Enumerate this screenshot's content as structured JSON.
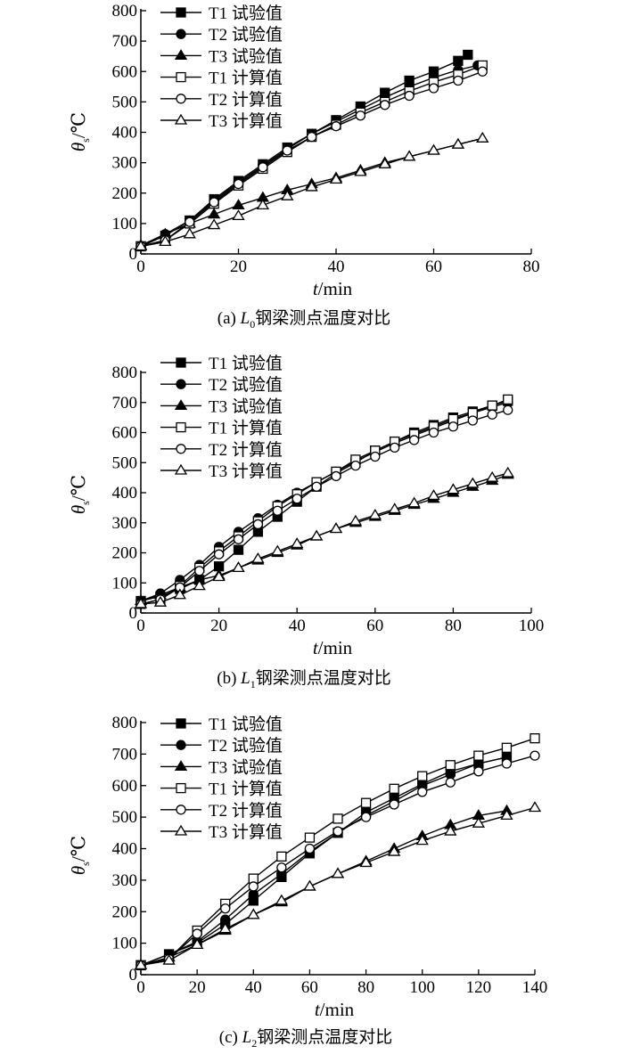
{
  "chart_data": [
    {
      "type": "line",
      "caption_prefix": "(a) ",
      "caption_italic": "L",
      "caption_sub": "0",
      "caption_suffix": "钢梁测点温度对比",
      "xlabel_italic": "t",
      "xlabel_unit": "/min",
      "ylabel_italic": "θ",
      "ylabel_sub": "s",
      "ylabel_unit": "/℃",
      "xlim": [
        0,
        80
      ],
      "ylim": [
        0,
        800
      ],
      "xticks": [
        0,
        20,
        40,
        60,
        80
      ],
      "yticks": [
        0,
        100,
        200,
        300,
        400,
        500,
        600,
        700,
        800
      ],
      "series": [
        {
          "name": "T1 试验值",
          "marker": "square-filled",
          "x": [
            0,
            5,
            10,
            15,
            20,
            25,
            30,
            35,
            40,
            45,
            50,
            55,
            60,
            65,
            67
          ],
          "y": [
            25,
            60,
            110,
            180,
            240,
            295,
            350,
            395,
            440,
            485,
            530,
            570,
            600,
            635,
            655
          ]
        },
        {
          "name": "T2 试验值",
          "marker": "circle-filled",
          "x": [
            0,
            5,
            10,
            15,
            20,
            25,
            30,
            35,
            40,
            45,
            50,
            55,
            60,
            65,
            69
          ],
          "y": [
            25,
            65,
            110,
            175,
            235,
            290,
            345,
            395,
            435,
            475,
            515,
            550,
            580,
            605,
            620
          ]
        },
        {
          "name": "T3 试验值",
          "marker": "triangle-filled",
          "x": [
            0,
            5,
            10,
            15,
            20,
            25,
            30,
            35,
            40,
            45,
            50,
            55,
            60,
            65,
            70
          ],
          "y": [
            28,
            65,
            100,
            130,
            160,
            185,
            210,
            230,
            250,
            275,
            300,
            320,
            340,
            360,
            380
          ]
        },
        {
          "name": "T1 计算值",
          "marker": "square-open",
          "x": [
            0,
            5,
            10,
            15,
            20,
            25,
            30,
            35,
            40,
            45,
            50,
            55,
            60,
            65,
            70
          ],
          "y": [
            25,
            45,
            100,
            165,
            225,
            280,
            335,
            385,
            425,
            465,
            500,
            535,
            565,
            590,
            620
          ]
        },
        {
          "name": "T2 计算值",
          "marker": "circle-open",
          "x": [
            0,
            5,
            10,
            15,
            20,
            25,
            30,
            35,
            40,
            45,
            50,
            55,
            60,
            65,
            70
          ],
          "y": [
            25,
            45,
            105,
            170,
            230,
            285,
            340,
            385,
            420,
            455,
            490,
            520,
            545,
            570,
            600
          ]
        },
        {
          "name": "T3 计算值",
          "marker": "triangle-open",
          "x": [
            0,
            5,
            10,
            15,
            20,
            25,
            30,
            35,
            40,
            45,
            50,
            55,
            60,
            65,
            70
          ],
          "y": [
            25,
            40,
            65,
            95,
            125,
            160,
            190,
            220,
            245,
            270,
            295,
            320,
            340,
            360,
            380
          ]
        }
      ]
    },
    {
      "type": "line",
      "caption_prefix": "(b) ",
      "caption_italic": "L",
      "caption_sub": "1",
      "caption_suffix": "钢梁测点温度对比",
      "xlabel_italic": "t",
      "xlabel_unit": "/min",
      "ylabel_italic": "θ",
      "ylabel_sub": "s",
      "ylabel_unit": "/℃",
      "xlim": [
        0,
        100
      ],
      "ylim": [
        0,
        800
      ],
      "xticks": [
        0,
        20,
        40,
        60,
        80,
        100
      ],
      "yticks": [
        0,
        100,
        200,
        300,
        400,
        500,
        600,
        700,
        800
      ],
      "series": [
        {
          "name": "T1 试验值",
          "marker": "square-filled",
          "x": [
            0,
            5,
            10,
            15,
            20,
            25,
            30,
            35,
            40,
            45,
            50,
            55,
            60,
            65,
            70,
            75,
            80,
            85,
            90,
            94
          ],
          "y": [
            40,
            55,
            80,
            110,
            155,
            210,
            270,
            320,
            370,
            420,
            465,
            500,
            540,
            570,
            600,
            625,
            650,
            670,
            690,
            705
          ]
        },
        {
          "name": "T2 试验值",
          "marker": "circle-filled",
          "x": [
            0,
            5,
            10,
            15,
            20,
            25,
            30,
            35,
            40,
            45,
            50,
            55,
            60,
            65,
            70,
            75,
            80,
            85,
            90,
            94
          ],
          "y": [
            40,
            65,
            110,
            160,
            220,
            270,
            315,
            360,
            400,
            435,
            470,
            505,
            535,
            565,
            590,
            615,
            640,
            665,
            685,
            700
          ]
        },
        {
          "name": "T3 试验值",
          "marker": "triangle-filled",
          "x": [
            0,
            5,
            10,
            15,
            20,
            25,
            30,
            35,
            40,
            45,
            50,
            55,
            60,
            65,
            70,
            75,
            80,
            85,
            90,
            94
          ],
          "y": [
            40,
            60,
            85,
            110,
            125,
            150,
            175,
            200,
            225,
            255,
            280,
            300,
            320,
            340,
            360,
            380,
            400,
            420,
            440,
            460
          ]
        },
        {
          "name": "T1 计算值",
          "marker": "square-open",
          "x": [
            0,
            5,
            10,
            15,
            20,
            25,
            30,
            35,
            40,
            45,
            50,
            55,
            60,
            65,
            70,
            75,
            80,
            85,
            90,
            94
          ],
          "y": [
            30,
            45,
            90,
            150,
            205,
            255,
            305,
            355,
            395,
            435,
            470,
            510,
            540,
            570,
            595,
            620,
            645,
            665,
            690,
            710
          ]
        },
        {
          "name": "T2 计算值",
          "marker": "circle-open",
          "x": [
            0,
            5,
            10,
            15,
            20,
            25,
            30,
            35,
            40,
            45,
            50,
            55,
            60,
            65,
            70,
            75,
            80,
            85,
            90,
            94
          ],
          "y": [
            30,
            45,
            85,
            140,
            195,
            245,
            295,
            340,
            380,
            420,
            455,
            490,
            520,
            550,
            575,
            600,
            620,
            640,
            660,
            675
          ]
        },
        {
          "name": "T3 计算值",
          "marker": "triangle-open",
          "x": [
            0,
            5,
            10,
            15,
            20,
            25,
            30,
            35,
            40,
            45,
            50,
            55,
            60,
            65,
            70,
            75,
            80,
            85,
            90,
            94
          ],
          "y": [
            30,
            35,
            60,
            90,
            120,
            150,
            180,
            205,
            230,
            255,
            280,
            305,
            325,
            345,
            365,
            390,
            410,
            430,
            450,
            465
          ]
        }
      ]
    },
    {
      "type": "line",
      "caption_prefix": "(c) ",
      "caption_italic": "L",
      "caption_sub": "2",
      "caption_suffix": "钢梁测点温度对比",
      "xlabel_italic": "t",
      "xlabel_unit": "/min",
      "ylabel_italic": "θ",
      "ylabel_sub": "s",
      "ylabel_unit": "/℃",
      "xlim": [
        0,
        140
      ],
      "ylim": [
        0,
        800
      ],
      "xticks": [
        0,
        20,
        40,
        60,
        80,
        100,
        120,
        140
      ],
      "yticks": [
        0,
        100,
        200,
        300,
        400,
        500,
        600,
        700,
        800
      ],
      "series": [
        {
          "name": "T1 试验值",
          "marker": "square-filled",
          "x": [
            0,
            10,
            20,
            30,
            40,
            50,
            60,
            70,
            80,
            90,
            100,
            110,
            120,
            130
          ],
          "y": [
            30,
            65,
            100,
            160,
            235,
            310,
            385,
            450,
            515,
            560,
            605,
            645,
            670,
            690
          ]
        },
        {
          "name": "T2 试验值",
          "marker": "circle-filled",
          "x": [
            0,
            10,
            20,
            30,
            40,
            50,
            60,
            70,
            80,
            90,
            100,
            110,
            120,
            130
          ],
          "y": [
            30,
            65,
            105,
            175,
            255,
            320,
            390,
            450,
            505,
            550,
            600,
            635,
            670,
            690
          ]
        },
        {
          "name": "T3 试验值",
          "marker": "triangle-filled",
          "x": [
            0,
            10,
            20,
            30,
            40,
            50,
            60,
            70,
            80,
            90,
            100,
            110,
            120,
            130
          ],
          "y": [
            30,
            55,
            95,
            140,
            190,
            230,
            280,
            320,
            360,
            400,
            440,
            475,
            505,
            520
          ]
        },
        {
          "name": "T1 计算值",
          "marker": "square-open",
          "x": [
            0,
            10,
            20,
            30,
            40,
            50,
            60,
            70,
            80,
            90,
            100,
            110,
            120,
            130,
            140
          ],
          "y": [
            30,
            50,
            140,
            225,
            305,
            375,
            435,
            495,
            545,
            590,
            630,
            665,
            695,
            720,
            750
          ]
        },
        {
          "name": "T2 计算值",
          "marker": "circle-open",
          "x": [
            0,
            10,
            20,
            30,
            40,
            50,
            60,
            70,
            80,
            90,
            100,
            110,
            120,
            130,
            140
          ],
          "y": [
            30,
            50,
            130,
            210,
            280,
            340,
            400,
            455,
            500,
            540,
            580,
            610,
            645,
            670,
            695
          ]
        },
        {
          "name": "T3 计算值",
          "marker": "triangle-open",
          "x": [
            0,
            10,
            20,
            30,
            40,
            50,
            60,
            70,
            80,
            90,
            100,
            110,
            120,
            130,
            140
          ],
          "y": [
            30,
            45,
            95,
            145,
            190,
            235,
            280,
            320,
            355,
            390,
            425,
            455,
            480,
            505,
            530
          ]
        }
      ]
    }
  ]
}
